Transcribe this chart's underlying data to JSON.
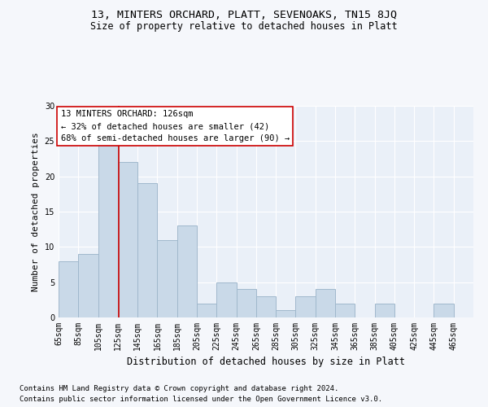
{
  "title": "13, MINTERS ORCHARD, PLATT, SEVENOAKS, TN15 8JQ",
  "subtitle": "Size of property relative to detached houses in Platt",
  "xlabel": "Distribution of detached houses by size in Platt",
  "ylabel": "Number of detached properties",
  "bar_color": "#c9d9e8",
  "bar_edgecolor": "#a0b8cc",
  "vline_x": 126,
  "vline_color": "#cc0000",
  "bins": [
    65,
    85,
    105,
    125,
    145,
    165,
    185,
    205,
    225,
    245,
    265,
    285,
    305,
    325,
    345,
    365,
    385,
    405,
    425,
    445,
    465,
    485
  ],
  "counts": [
    8,
    9,
    25,
    22,
    19,
    11,
    13,
    2,
    5,
    4,
    3,
    1,
    3,
    4,
    2,
    0,
    2,
    0,
    0,
    2,
    0
  ],
  "tick_labels": [
    "65sqm",
    "85sqm",
    "105sqm",
    "125sqm",
    "145sqm",
    "165sqm",
    "185sqm",
    "205sqm",
    "225sqm",
    "245sqm",
    "265sqm",
    "285sqm",
    "305sqm",
    "325sqm",
    "345sqm",
    "365sqm",
    "385sqm",
    "405sqm",
    "425sqm",
    "445sqm",
    "465sqm"
  ],
  "annotation_lines": [
    "13 MINTERS ORCHARD: 126sqm",
    "← 32% of detached houses are smaller (42)",
    "68% of semi-detached houses are larger (90) →"
  ],
  "footnote1": "Contains HM Land Registry data © Crown copyright and database right 2024.",
  "footnote2": "Contains public sector information licensed under the Open Government Licence v3.0.",
  "ylim": [
    0,
    30
  ],
  "yticks": [
    0,
    5,
    10,
    15,
    20,
    25,
    30
  ],
  "bg_color": "#eaf0f8",
  "grid_color": "#ffffff",
  "fig_bg_color": "#f5f7fb",
  "title_fontsize": 9.5,
  "subtitle_fontsize": 8.5,
  "axis_label_fontsize": 8,
  "tick_fontsize": 7,
  "annotation_fontsize": 7.5,
  "footnote_fontsize": 6.5
}
